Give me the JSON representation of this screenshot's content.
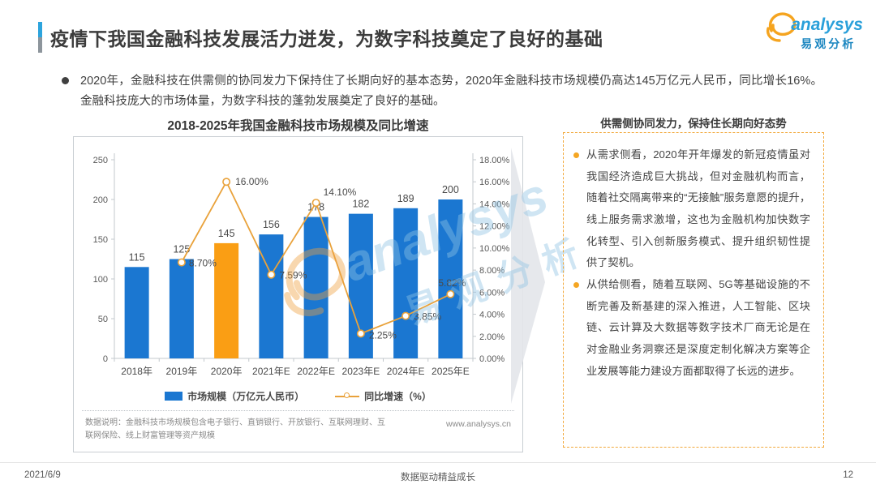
{
  "header": {
    "title": "疫情下我国金融科技发展活力迸发，为数字科技奠定了良好的基础",
    "logo": {
      "brand": "analysys",
      "brand_cn": "易观分析"
    }
  },
  "intro": {
    "text": "2020年，金融科技在供需侧的协同发力下保持住了长期向好的基本态势，2020年金融科技市场规模仍高达145万亿元人民币，同比增长16%。金融科技庞大的市场体量，为数字科技的蓬勃发展奠定了良好的基础。"
  },
  "chart_data": {
    "type": "bar+line",
    "title": "2018-2025年我国金融科技市场规模及同比增速",
    "categories": [
      "2018年",
      "2019年",
      "2020年",
      "2021年E",
      "2022年E",
      "2023年E",
      "2024年E",
      "2025年E"
    ],
    "series": [
      {
        "name": "市场规模（万亿元人民币）",
        "type": "bar",
        "axis": "left",
        "values": [
          115,
          125,
          145,
          156,
          178,
          182,
          189,
          200
        ],
        "color": "#1b77d1",
        "highlight_index": 2,
        "highlight_color": "#fa9e14"
      },
      {
        "name": "同比增速（%）",
        "type": "line",
        "axis": "right",
        "values": [
          null,
          8.7,
          16.0,
          7.59,
          14.1,
          2.25,
          3.85,
          5.82
        ],
        "labels": [
          null,
          "8.70%",
          "16.00%",
          "7.59%",
          "14.10%",
          "2.25%",
          "3.85%",
          "5.82%"
        ],
        "color": "#e9a23b"
      }
    ],
    "left_axis": {
      "min": 0,
      "max": 250,
      "step": 50,
      "ticks": [
        "0",
        "50",
        "100",
        "150",
        "200",
        "250"
      ]
    },
    "right_axis": {
      "min": 0,
      "max": 18,
      "step": 2,
      "ticks": [
        "0.00%",
        "2.00%",
        "4.00%",
        "6.00%",
        "8.00%",
        "10.00%",
        "12.00%",
        "14.00%",
        "16.00%",
        "18.00%"
      ]
    },
    "legend_position": "bottom",
    "grid": false,
    "note": "数据说明：金融科技市场规模包含电子银行、直销银行、开放银行、互联网理财、互联网保险、线上财富管理等资产规模",
    "source_url": "www.analysys.cn"
  },
  "side_panel": {
    "header": "供需侧协同发力，保持住长期向好态势",
    "bullets": [
      "从需求侧看，2020年开年爆发的新冠疫情虽对我国经济造成巨大挑战，但对金融机构而言，随着社交隔离带来的“无接触”服务意愿的提升，线上服务需求激增，这也为金融机构加快数字化转型、引入创新服务模式、提升组织韧性提供了契机。",
      "从供给侧看，随着互联网、5G等基础设施的不断完善及新基建的深入推进，人工智能、区块链、云计算及大数据等数字技术厂商无论是在对金融业务洞察还是深度定制化解决方案等企业发展等能力建设方面都取得了长远的进步。"
    ]
  },
  "watermark": {
    "brand": "analysys",
    "brand_cn": "易观分析"
  },
  "footer": {
    "date": "2021/6/9",
    "slogan": "数据驱动精益成长",
    "page_number": "12"
  }
}
